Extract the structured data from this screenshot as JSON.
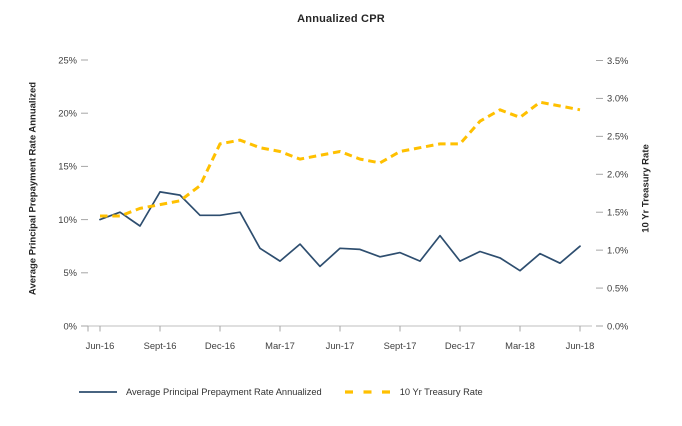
{
  "title": "Annualized CPR",
  "left_axis": {
    "title": "Average Principal Prepayment Rate Annualized",
    "tick_labels": [
      "0%",
      "5%",
      "10%",
      "15%",
      "20%",
      "25%"
    ],
    "tick_values": [
      0,
      5,
      10,
      15,
      20,
      25
    ],
    "max": 25
  },
  "right_axis": {
    "title": "10 Yr Treasury Rate",
    "tick_labels": [
      "0.0%",
      "0.5%",
      "1.0%",
      "1.5%",
      "2.0%",
      "2.5%",
      "3.0%",
      "3.5%"
    ],
    "tick_values": [
      0,
      0.5,
      1.0,
      1.5,
      2.0,
      2.5,
      3.0,
      3.5
    ],
    "max": 3.5
  },
  "x_axis": {
    "tick_labels": [
      "Jun-16",
      "Sept-16",
      "Dec-16",
      "Mar-17",
      "Jun-17",
      "Sept-17",
      "Dec-17",
      "Mar-18",
      "Jun-18"
    ],
    "tick_every_n_points": 3
  },
  "legend": {
    "items": [
      {
        "label": "Average Principal Prepayment Rate Annualized",
        "style": "solid",
        "color": "#2E4E6F"
      },
      {
        "label": "10 Yr Treasury Rate",
        "style": "dashed",
        "color": "#FFC000"
      }
    ],
    "position": "bottom"
  },
  "colors": {
    "prepayment_line": "#2E4E6F",
    "treasury_line": "#FFC000",
    "axis_line": "#BFBFBF",
    "tick_mark": "#A6A6A6",
    "tick_text": "#404040",
    "title_text": "#262626",
    "background": "#FFFFFF"
  },
  "chart_data": {
    "type": "line",
    "title": "Annualized CPR",
    "x": [
      "Jun-16",
      "Jul-16",
      "Aug-16",
      "Sep-16",
      "Oct-16",
      "Nov-16",
      "Dec-16",
      "Jan-17",
      "Feb-17",
      "Mar-17",
      "Apr-17",
      "May-17",
      "Jun-17",
      "Jul-17",
      "Aug-17",
      "Sep-17",
      "Oct-17",
      "Nov-17",
      "Dec-17",
      "Jan-18",
      "Feb-18",
      "Mar-18",
      "Apr-18",
      "May-18",
      "Jun-18"
    ],
    "series": [
      {
        "name": "Average Principal Prepayment Rate Annualized",
        "axis": "left",
        "units": "percent",
        "color": "#2E4E6F",
        "style": "solid",
        "values": [
          10.0,
          10.7,
          9.4,
          12.6,
          12.3,
          10.4,
          10.4,
          10.7,
          7.3,
          6.1,
          7.7,
          5.6,
          7.3,
          7.2,
          6.5,
          6.9,
          6.1,
          8.5,
          6.1,
          7.0,
          6.4,
          5.2,
          6.8,
          5.9,
          7.5
        ]
      },
      {
        "name": "10 Yr Treasury Rate",
        "axis": "right",
        "units": "percent",
        "color": "#FFC000",
        "style": "dashed",
        "values": [
          1.45,
          1.45,
          1.55,
          1.6,
          1.65,
          1.85,
          2.4,
          2.45,
          2.35,
          2.3,
          2.2,
          2.25,
          2.3,
          2.2,
          2.15,
          2.3,
          2.35,
          2.4,
          2.4,
          2.7,
          2.85,
          2.75,
          2.95,
          2.9,
          2.85
        ]
      }
    ],
    "left_ylim": [
      0,
      25
    ],
    "right_ylim": [
      0,
      3.5
    ],
    "grid": false,
    "legend_position": "bottom"
  }
}
